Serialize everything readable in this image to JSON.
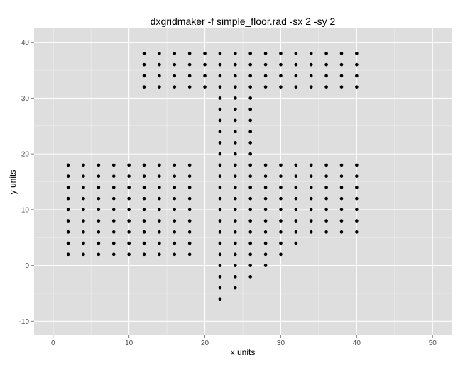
{
  "chart_data": {
    "type": "scatter",
    "title": "dxgridmaker -f simple_floor.rad -sx 2 -sy 2",
    "xlabel": "x units",
    "ylabel": "y units",
    "xlim": [
      -2.5,
      52.5
    ],
    "ylim": [
      -12.5,
      42.5
    ],
    "x_ticks": [
      0,
      10,
      20,
      30,
      40,
      50
    ],
    "y_ticks": [
      -10,
      0,
      10,
      20,
      30,
      40
    ],
    "x_minor": [
      5,
      15,
      25,
      35,
      45
    ],
    "y_minor": [
      -5,
      5,
      15,
      25,
      35
    ],
    "grid": true,
    "legend": "none",
    "panel_color": "#dedede",
    "grid_color": "#ffffff",
    "point_color": "#000000",
    "series": [
      {
        "points": [
          [
            12,
            32
          ],
          [
            12,
            34
          ],
          [
            12,
            36
          ],
          [
            12,
            38
          ],
          [
            14,
            32
          ],
          [
            14,
            34
          ],
          [
            14,
            36
          ],
          [
            14,
            38
          ],
          [
            16,
            32
          ],
          [
            16,
            34
          ],
          [
            16,
            36
          ],
          [
            16,
            38
          ],
          [
            18,
            32
          ],
          [
            18,
            34
          ],
          [
            18,
            36
          ],
          [
            18,
            38
          ],
          [
            20,
            32
          ],
          [
            20,
            34
          ],
          [
            20,
            36
          ],
          [
            20,
            38
          ],
          [
            22,
            32
          ],
          [
            22,
            34
          ],
          [
            22,
            36
          ],
          [
            22,
            38
          ],
          [
            24,
            32
          ],
          [
            24,
            34
          ],
          [
            24,
            36
          ],
          [
            24,
            38
          ],
          [
            26,
            32
          ],
          [
            26,
            34
          ],
          [
            26,
            36
          ],
          [
            26,
            38
          ],
          [
            28,
            32
          ],
          [
            28,
            34
          ],
          [
            28,
            36
          ],
          [
            28,
            38
          ],
          [
            30,
            32
          ],
          [
            30,
            34
          ],
          [
            30,
            36
          ],
          [
            30,
            38
          ],
          [
            32,
            32
          ],
          [
            32,
            34
          ],
          [
            32,
            36
          ],
          [
            32,
            38
          ],
          [
            34,
            32
          ],
          [
            34,
            34
          ],
          [
            34,
            36
          ],
          [
            34,
            38
          ],
          [
            36,
            32
          ],
          [
            36,
            34
          ],
          [
            36,
            36
          ],
          [
            36,
            38
          ],
          [
            38,
            32
          ],
          [
            38,
            34
          ],
          [
            38,
            36
          ],
          [
            38,
            38
          ],
          [
            40,
            32
          ],
          [
            40,
            34
          ],
          [
            40,
            36
          ],
          [
            40,
            38
          ],
          [
            22,
            20
          ],
          [
            22,
            22
          ],
          [
            22,
            24
          ],
          [
            22,
            26
          ],
          [
            22,
            28
          ],
          [
            22,
            30
          ],
          [
            24,
            20
          ],
          [
            24,
            22
          ],
          [
            24,
            24
          ],
          [
            24,
            26
          ],
          [
            24,
            28
          ],
          [
            24,
            30
          ],
          [
            26,
            20
          ],
          [
            26,
            22
          ],
          [
            26,
            24
          ],
          [
            26,
            26
          ],
          [
            26,
            28
          ],
          [
            26,
            30
          ],
          [
            2,
            2
          ],
          [
            2,
            4
          ],
          [
            2,
            6
          ],
          [
            2,
            8
          ],
          [
            2,
            10
          ],
          [
            2,
            12
          ],
          [
            2,
            14
          ],
          [
            2,
            16
          ],
          [
            2,
            18
          ],
          [
            4,
            2
          ],
          [
            4,
            4
          ],
          [
            4,
            6
          ],
          [
            4,
            8
          ],
          [
            4,
            10
          ],
          [
            4,
            12
          ],
          [
            4,
            14
          ],
          [
            4,
            16
          ],
          [
            4,
            18
          ],
          [
            6,
            2
          ],
          [
            6,
            4
          ],
          [
            6,
            6
          ],
          [
            6,
            8
          ],
          [
            6,
            10
          ],
          [
            6,
            12
          ],
          [
            6,
            14
          ],
          [
            6,
            16
          ],
          [
            6,
            18
          ],
          [
            8,
            2
          ],
          [
            8,
            4
          ],
          [
            8,
            6
          ],
          [
            8,
            8
          ],
          [
            8,
            10
          ],
          [
            8,
            12
          ],
          [
            8,
            14
          ],
          [
            8,
            16
          ],
          [
            8,
            18
          ],
          [
            10,
            2
          ],
          [
            10,
            4
          ],
          [
            10,
            6
          ],
          [
            10,
            8
          ],
          [
            10,
            10
          ],
          [
            10,
            12
          ],
          [
            10,
            14
          ],
          [
            10,
            16
          ],
          [
            10,
            18
          ],
          [
            12,
            2
          ],
          [
            12,
            4
          ],
          [
            12,
            6
          ],
          [
            12,
            8
          ],
          [
            12,
            10
          ],
          [
            12,
            12
          ],
          [
            12,
            14
          ],
          [
            12,
            16
          ],
          [
            12,
            18
          ],
          [
            14,
            2
          ],
          [
            14,
            4
          ],
          [
            14,
            6
          ],
          [
            14,
            8
          ],
          [
            14,
            10
          ],
          [
            14,
            12
          ],
          [
            14,
            14
          ],
          [
            14,
            16
          ],
          [
            14,
            18
          ],
          [
            16,
            2
          ],
          [
            16,
            4
          ],
          [
            16,
            6
          ],
          [
            16,
            8
          ],
          [
            16,
            10
          ],
          [
            16,
            12
          ],
          [
            16,
            14
          ],
          [
            16,
            16
          ],
          [
            16,
            18
          ],
          [
            18,
            2
          ],
          [
            18,
            4
          ],
          [
            18,
            6
          ],
          [
            18,
            8
          ],
          [
            18,
            10
          ],
          [
            18,
            12
          ],
          [
            18,
            14
          ],
          [
            18,
            16
          ],
          [
            18,
            18
          ],
          [
            22,
            -6
          ],
          [
            22,
            -4
          ],
          [
            22,
            -2
          ],
          [
            22,
            0
          ],
          [
            22,
            2
          ],
          [
            22,
            4
          ],
          [
            22,
            6
          ],
          [
            22,
            8
          ],
          [
            22,
            10
          ],
          [
            22,
            12
          ],
          [
            22,
            14
          ],
          [
            22,
            16
          ],
          [
            22,
            18
          ],
          [
            24,
            -4
          ],
          [
            24,
            -2
          ],
          [
            24,
            0
          ],
          [
            24,
            2
          ],
          [
            24,
            4
          ],
          [
            24,
            6
          ],
          [
            24,
            8
          ],
          [
            24,
            10
          ],
          [
            24,
            12
          ],
          [
            24,
            14
          ],
          [
            24,
            16
          ],
          [
            24,
            18
          ],
          [
            26,
            -2
          ],
          [
            26,
            0
          ],
          [
            26,
            2
          ],
          [
            26,
            4
          ],
          [
            26,
            6
          ],
          [
            26,
            8
          ],
          [
            26,
            10
          ],
          [
            26,
            12
          ],
          [
            26,
            14
          ],
          [
            26,
            16
          ],
          [
            26,
            18
          ],
          [
            28,
            0
          ],
          [
            28,
            2
          ],
          [
            28,
            4
          ],
          [
            28,
            6
          ],
          [
            28,
            8
          ],
          [
            28,
            10
          ],
          [
            28,
            12
          ],
          [
            28,
            14
          ],
          [
            28,
            16
          ],
          [
            28,
            18
          ],
          [
            30,
            2
          ],
          [
            30,
            4
          ],
          [
            30,
            6
          ],
          [
            30,
            8
          ],
          [
            30,
            10
          ],
          [
            30,
            12
          ],
          [
            30,
            14
          ],
          [
            30,
            16
          ],
          [
            30,
            18
          ],
          [
            32,
            4
          ],
          [
            32,
            6
          ],
          [
            32,
            8
          ],
          [
            32,
            10
          ],
          [
            32,
            12
          ],
          [
            32,
            14
          ],
          [
            32,
            16
          ],
          [
            32,
            18
          ],
          [
            34,
            6
          ],
          [
            34,
            8
          ],
          [
            34,
            10
          ],
          [
            34,
            12
          ],
          [
            34,
            14
          ],
          [
            34,
            16
          ],
          [
            34,
            18
          ],
          [
            36,
            6
          ],
          [
            36,
            8
          ],
          [
            36,
            10
          ],
          [
            36,
            12
          ],
          [
            36,
            14
          ],
          [
            36,
            16
          ],
          [
            36,
            18
          ],
          [
            38,
            6
          ],
          [
            38,
            8
          ],
          [
            38,
            10
          ],
          [
            38,
            12
          ],
          [
            38,
            14
          ],
          [
            38,
            16
          ],
          [
            38,
            18
          ],
          [
            40,
            6
          ],
          [
            40,
            8
          ],
          [
            40,
            10
          ],
          [
            40,
            12
          ],
          [
            40,
            14
          ],
          [
            40,
            16
          ],
          [
            40,
            18
          ]
        ]
      }
    ]
  }
}
